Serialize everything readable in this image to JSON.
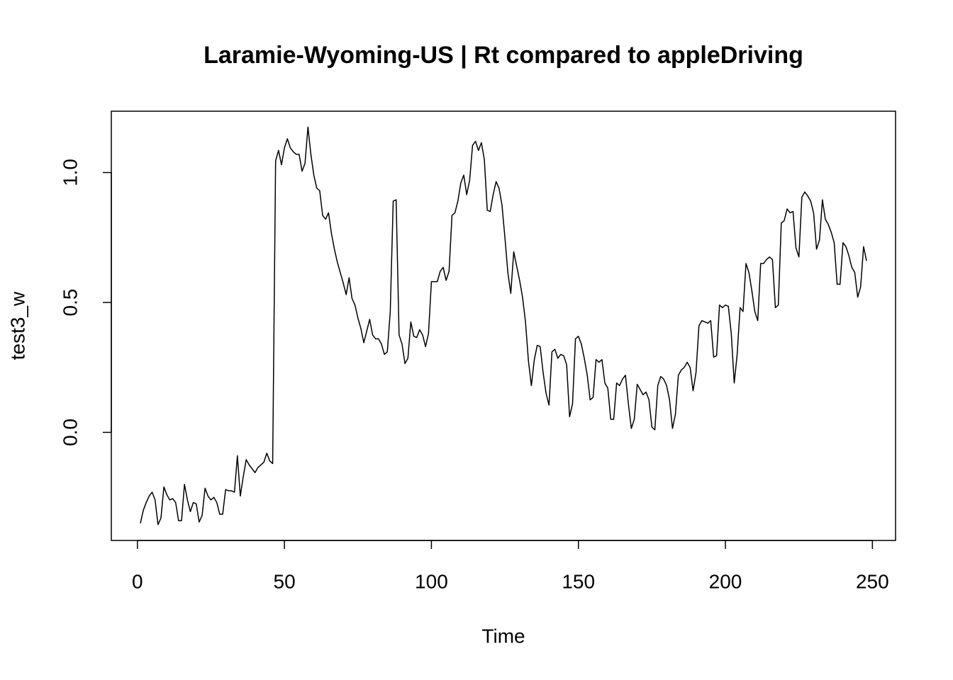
{
  "chart_data": {
    "type": "line",
    "title": "Laramie-Wyoming-US | Rt compared to appleDriving",
    "xlabel": "Time",
    "ylabel": "test3_w",
    "color": "#000000",
    "xlim": [
      -8.88,
      257.88
    ],
    "ylim": [
      -0.416,
      1.236
    ],
    "xticks": [
      0,
      50,
      100,
      150,
      200,
      250
    ],
    "yticks": [
      {
        "value": 0,
        "label": "0.0"
      },
      0.5,
      {
        "value": 1,
        "label": "1.0"
      }
    ],
    "x": [
      1,
      2,
      3,
      4,
      5,
      6,
      7,
      8,
      9,
      10,
      11,
      12,
      13,
      14,
      15,
      16,
      17,
      18,
      19,
      20,
      21,
      22,
      23,
      24,
      25,
      26,
      27,
      28,
      29,
      30,
      31,
      32,
      33,
      34,
      35,
      36,
      37,
      38,
      39,
      40,
      41,
      42,
      43,
      44,
      45,
      46,
      47,
      48,
      49,
      50,
      51,
      52,
      53,
      54,
      55,
      56,
      57,
      58,
      59,
      60,
      61,
      62,
      63,
      64,
      65,
      66,
      67,
      68,
      69,
      70,
      71,
      72,
      73,
      74,
      75,
      76,
      77,
      78,
      79,
      80,
      81,
      82,
      83,
      84,
      85,
      86,
      87,
      88,
      89,
      90,
      91,
      92,
      93,
      94,
      95,
      96,
      97,
      98,
      99,
      100,
      101,
      102,
      103,
      104,
      105,
      106,
      107,
      108,
      109,
      110,
      111,
      112,
      113,
      114,
      115,
      116,
      117,
      118,
      119,
      120,
      121,
      122,
      123,
      124,
      125,
      126,
      127,
      128,
      129,
      130,
      131,
      132,
      133,
      134,
      135,
      136,
      137,
      138,
      139,
      140,
      141,
      142,
      143,
      144,
      145,
      146,
      147,
      148,
      149,
      150,
      151,
      152,
      153,
      154,
      155,
      156,
      157,
      158,
      159,
      160,
      161,
      162,
      163,
      164,
      165,
      166,
      167,
      168,
      169,
      170,
      171,
      172,
      173,
      174,
      175,
      176,
      177,
      178,
      179,
      180,
      181,
      182,
      183,
      184,
      185,
      186,
      187,
      188,
      189,
      190,
      191,
      192,
      193,
      194,
      195,
      196,
      197,
      198,
      199,
      200,
      201,
      202,
      203,
      204,
      205,
      206,
      207,
      208,
      209,
      210,
      211,
      212,
      213,
      214,
      215,
      216,
      217,
      218,
      219,
      220,
      221,
      222,
      223,
      224,
      225,
      226,
      227,
      228,
      229,
      230,
      231,
      232,
      233,
      234,
      235,
      236,
      237,
      238,
      239,
      240,
      241,
      242,
      243,
      244,
      245,
      246,
      247,
      248
    ],
    "values": [
      -0.35,
      -0.3,
      -0.27,
      -0.245,
      -0.23,
      -0.26,
      -0.355,
      -0.33,
      -0.21,
      -0.24,
      -0.26,
      -0.255,
      -0.27,
      -0.34,
      -0.34,
      -0.2,
      -0.26,
      -0.305,
      -0.27,
      -0.275,
      -0.345,
      -0.32,
      -0.215,
      -0.245,
      -0.26,
      -0.25,
      -0.27,
      -0.315,
      -0.315,
      -0.22,
      -0.225,
      -0.225,
      -0.23,
      -0.09,
      -0.245,
      -0.17,
      -0.105,
      -0.125,
      -0.14,
      -0.155,
      -0.135,
      -0.125,
      -0.115,
      -0.08,
      -0.11,
      -0.12,
      1.045,
      1.085,
      1.03,
      1.095,
      1.13,
      1.095,
      1.08,
      1.07,
      1.07,
      1.005,
      1.035,
      1.175,
      1.07,
      0.99,
      0.94,
      0.93,
      0.835,
      0.82,
      0.845,
      0.765,
      0.705,
      0.655,
      0.615,
      0.575,
      0.53,
      0.595,
      0.515,
      0.49,
      0.44,
      0.4,
      0.345,
      0.39,
      0.435,
      0.375,
      0.36,
      0.36,
      0.34,
      0.3,
      0.31,
      0.465,
      0.89,
      0.895,
      0.375,
      0.34,
      0.265,
      0.285,
      0.425,
      0.37,
      0.365,
      0.395,
      0.375,
      0.33,
      0.38,
      0.58,
      0.58,
      0.58,
      0.62,
      0.635,
      0.585,
      0.62,
      0.835,
      0.845,
      0.89,
      0.96,
      0.99,
      0.915,
      0.97,
      1.105,
      1.12,
      1.085,
      1.115,
      1.05,
      0.855,
      0.85,
      0.915,
      0.965,
      0.94,
      0.875,
      0.75,
      0.615,
      0.535,
      0.695,
      0.64,
      0.585,
      0.52,
      0.425,
      0.275,
      0.18,
      0.28,
      0.335,
      0.33,
      0.23,
      0.15,
      0.105,
      0.31,
      0.32,
      0.285,
      0.3,
      0.295,
      0.26,
      0.06,
      0.11,
      0.36,
      0.37,
      0.34,
      0.285,
      0.22,
      0.125,
      0.135,
      0.28,
      0.27,
      0.28,
      0.19,
      0.17,
      0.05,
      0.05,
      0.19,
      0.18,
      0.205,
      0.22,
      0.11,
      0.015,
      0.05,
      0.185,
      0.165,
      0.145,
      0.155,
      0.125,
      0.02,
      0.01,
      0.18,
      0.215,
      0.205,
      0.18,
      0.125,
      0.015,
      0.07,
      0.22,
      0.24,
      0.25,
      0.27,
      0.25,
      0.16,
      0.23,
      0.41,
      0.43,
      0.425,
      0.42,
      0.43,
      0.29,
      0.295,
      0.49,
      0.48,
      0.49,
      0.485,
      0.38,
      0.19,
      0.3,
      0.48,
      0.465,
      0.65,
      0.615,
      0.545,
      0.465,
      0.43,
      0.65,
      0.65,
      0.665,
      0.675,
      0.665,
      0.48,
      0.49,
      0.805,
      0.815,
      0.86,
      0.845,
      0.85,
      0.71,
      0.675,
      0.905,
      0.925,
      0.91,
      0.89,
      0.845,
      0.705,
      0.74,
      0.895,
      0.82,
      0.8,
      0.77,
      0.73,
      0.57,
      0.57,
      0.73,
      0.715,
      0.68,
      0.635,
      0.615,
      0.52,
      0.56,
      0.715,
      0.66
    ]
  }
}
